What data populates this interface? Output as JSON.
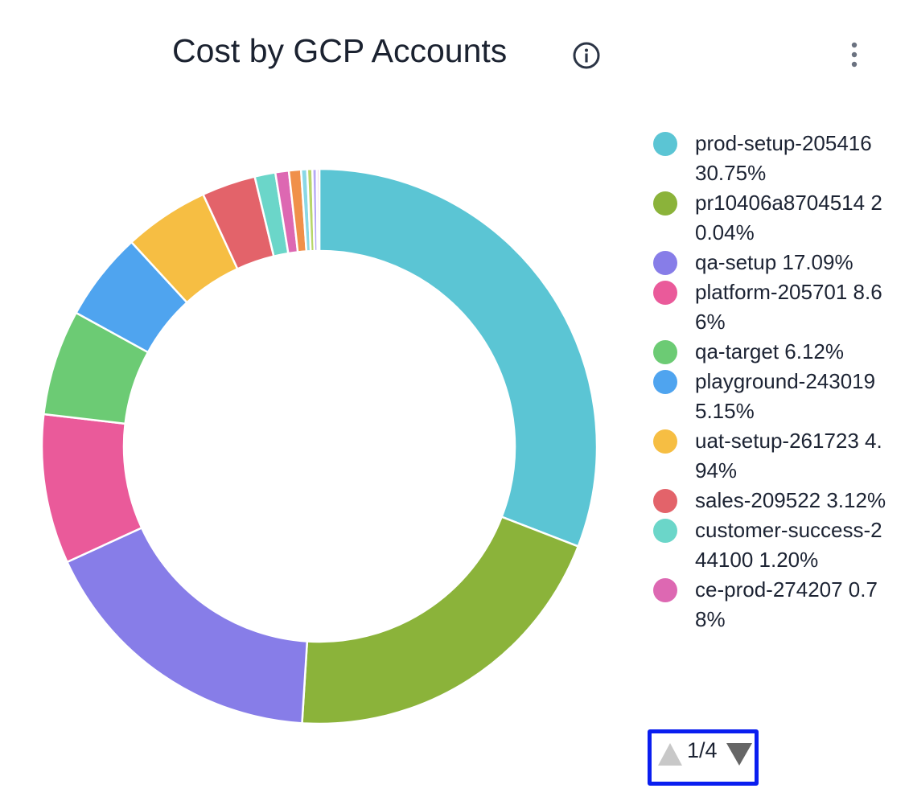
{
  "header": {
    "title": "Cost by GCP Accounts"
  },
  "chart_data": {
    "type": "pie",
    "title": "Cost by GCP Accounts",
    "donut": true,
    "legend_position": "right",
    "slices": [
      {
        "label": "prod-setup-205416",
        "value": 30.75,
        "display": "prod-setup-205416 30.75%",
        "color": "#5bc5d4"
      },
      {
        "label": "pr10406a8704514",
        "value": 20.04,
        "display": "pr10406a8704514 20.04%",
        "color": "#8bb33a"
      },
      {
        "label": "qa-setup",
        "value": 17.09,
        "display": "qa-setup 17.09%",
        "color": "#877de8"
      },
      {
        "label": "platform-205701",
        "value": 8.66,
        "display": "platform-205701 8.66%",
        "color": "#ea5a9a"
      },
      {
        "label": "qa-target",
        "value": 6.12,
        "display": "qa-target 6.12%",
        "color": "#6ccb74"
      },
      {
        "label": "playground-243019",
        "value": 5.15,
        "display": "playground-243019 5.15%",
        "color": "#4fa4ef"
      },
      {
        "label": "uat-setup-261723",
        "value": 4.94,
        "display": "uat-setup-261723 4.94%",
        "color": "#f6be43"
      },
      {
        "label": "sales-209522",
        "value": 3.12,
        "display": "sales-209522 3.12%",
        "color": "#e3636a"
      },
      {
        "label": "customer-success-244100",
        "value": 1.2,
        "display": "customer-success-244100 1.20%",
        "color": "#6bd6c9"
      },
      {
        "label": "ce-prod-274207",
        "value": 0.78,
        "display": "ce-prod-274207 0.78%",
        "color": "#dd68b2"
      },
      {
        "value": 0.7,
        "color": "#f0904a"
      },
      {
        "value": 0.35,
        "color": "#8ad8e6"
      },
      {
        "value": 0.3,
        "color": "#b8d66a"
      },
      {
        "value": 0.25,
        "color": "#b5a8f5"
      },
      {
        "value": 0.15,
        "color": "#f3c6dc"
      }
    ]
  },
  "pager": {
    "label": "1/4"
  },
  "colors": {
    "pager_border": "#0a1ef0"
  }
}
